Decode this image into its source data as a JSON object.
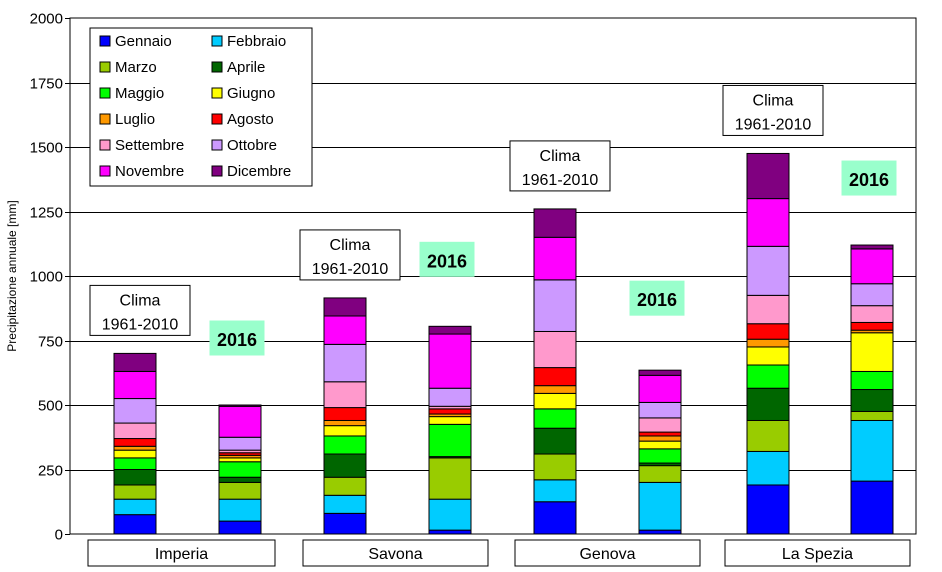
{
  "chart_data": {
    "type": "bar",
    "stacked": true,
    "ylabel": "Precipitazione annuale [mm]",
    "ylim": [
      0,
      2000
    ],
    "yticks": [
      0,
      250,
      500,
      750,
      1000,
      1250,
      1500,
      1750,
      2000
    ],
    "grid": true,
    "legend_position": "top-left",
    "series_names": [
      "Gennaio",
      "Febbraio",
      "Marzo",
      "Aprile",
      "Maggio",
      "Giugno",
      "Luglio",
      "Agosto",
      "Settembre",
      "Ottobre",
      "Novembre",
      "Dicembre"
    ],
    "series_colors": [
      "#0000ff",
      "#00ccff",
      "#99cc00",
      "#006600",
      "#00ff00",
      "#ffff00",
      "#ff9900",
      "#ff0000",
      "#ff99cc",
      "#cc99ff",
      "#ff00ff",
      "#800080"
    ],
    "groups": [
      {
        "name": "Imperia",
        "bars": [
          {
            "label": "Clima\n1961-2010",
            "label_style": "clima",
            "values": [
              75,
              60,
              55,
              60,
              45,
              30,
              15,
              30,
              60,
              95,
              105,
              70
            ]
          },
          {
            "label": "2016",
            "label_style": "year",
            "values": [
              50,
              85,
              65,
              20,
              60,
              15,
              10,
              10,
              10,
              50,
              120,
              5
            ]
          }
        ]
      },
      {
        "name": "Savona",
        "bars": [
          {
            "label": "Clima\n1961-2010",
            "label_style": "clima",
            "values": [
              80,
              70,
              70,
              90,
              70,
              40,
              20,
              50,
              100,
              145,
              110,
              70
            ]
          },
          {
            "label": "2016",
            "label_style": "year",
            "values": [
              15,
              120,
              160,
              5,
              125,
              30,
              10,
              20,
              10,
              70,
              210,
              30
            ]
          }
        ]
      },
      {
        "name": "Genova",
        "bars": [
          {
            "label": "Clima\n1961-2010",
            "label_style": "clima",
            "values": [
              125,
              85,
              100,
              100,
              75,
              60,
              30,
              70,
              140,
              200,
              165,
              110
            ]
          },
          {
            "label": "2016",
            "label_style": "year",
            "values": [
              15,
              185,
              65,
              10,
              55,
              30,
              20,
              15,
              55,
              60,
              105,
              20
            ]
          }
        ]
      },
      {
        "name": "La Spezia",
        "bars": [
          {
            "label": "Clima\n1961-2010",
            "label_style": "clima",
            "values": [
              190,
              130,
              120,
              125,
              90,
              70,
              30,
              60,
              110,
              190,
              185,
              175
            ]
          },
          {
            "label": "2016",
            "label_style": "year",
            "values": [
              205,
              235,
              35,
              85,
              70,
              150,
              10,
              30,
              65,
              85,
              135,
              15
            ]
          }
        ]
      }
    ]
  }
}
